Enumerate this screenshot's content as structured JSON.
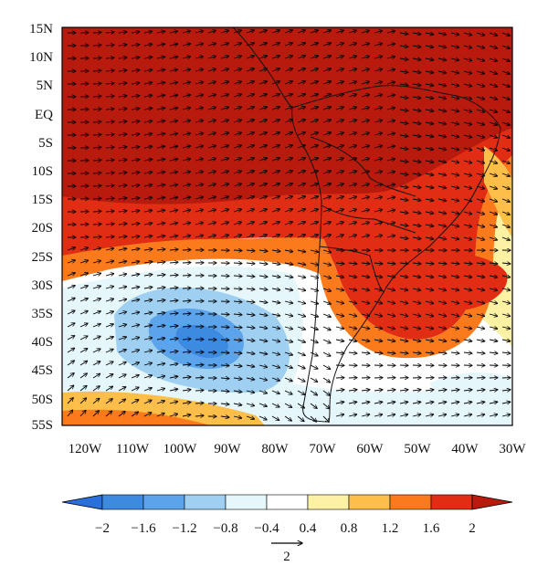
{
  "map": {
    "lat_labels": [
      "15N",
      "10N",
      "5N",
      "EQ",
      "5S",
      "10S",
      "15S",
      "20S",
      "25S",
      "30S",
      "35S",
      "40S",
      "45S",
      "50S",
      "55S"
    ],
    "lon_labels": [
      "120W",
      "110W",
      "100W",
      "90W",
      "80W",
      "70W",
      "60W",
      "50W",
      "40W",
      "30W"
    ],
    "lon_range": [
      -125,
      -30
    ],
    "lat_range": [
      -55,
      15
    ]
  },
  "colorbar": {
    "labels": [
      "−2",
      "−1.6",
      "−1.2",
      "−0.8",
      "−0.4",
      "0.4",
      "0.8",
      "1.2",
      "1.6",
      "2"
    ],
    "colors": [
      "#2a6fdb",
      "#3d8be0",
      "#5ba3ea",
      "#9fd0f2",
      "#e6f7fc",
      "#ffffff",
      "#fdf2a4",
      "#fdbe4a",
      "#fa7a1c",
      "#e02d14",
      "#b81a0e"
    ]
  },
  "vector_key": {
    "label": "2"
  },
  "colors": {
    "ocean_dark_red": "#b81a0e",
    "red": "#e02d14",
    "orange": "#fa7a1c",
    "light_orange": "#fdbe4a",
    "yellow": "#fdf2a4",
    "pale_blue": "#e6f7fc",
    "light_blue": "#9fd0f2",
    "mid_blue": "#5ba3ea"
  }
}
